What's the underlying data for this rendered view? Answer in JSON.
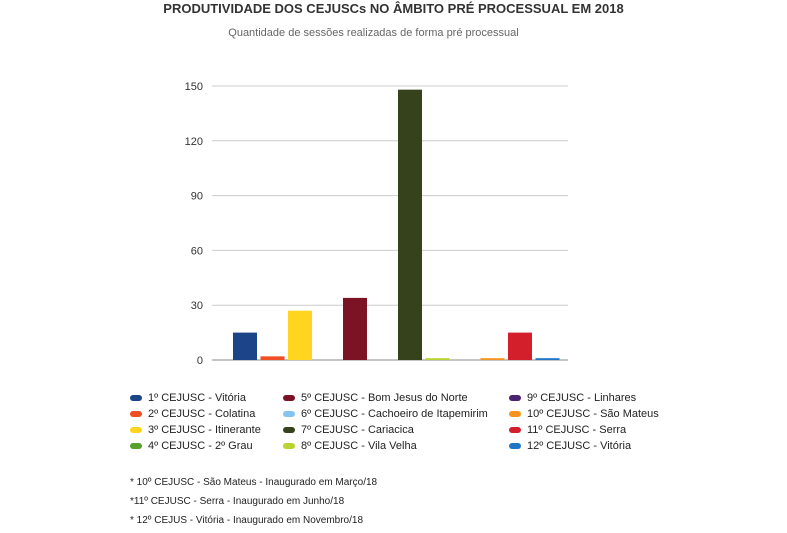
{
  "chart_data": {
    "type": "bar",
    "title": "PRODUTIVIDADE DOS CEJUSCs NO ÂMBITO PRÉ PROCESSUAL EM 2018",
    "subtitle": "Quantidade de sessões realizadas de forma pré processual",
    "xlabel": "",
    "ylabel": "",
    "ylim": [
      0,
      150
    ],
    "yticks": [
      "0",
      "30",
      "60",
      "90",
      "120",
      "150"
    ],
    "grid": true,
    "legend_position": "bottom",
    "series": [
      {
        "name": "1º CEJUSC - Vitória",
        "value": 15,
        "color": "#1c4587"
      },
      {
        "name": "2º CEJUSC - Colatina",
        "value": 2,
        "color": "#f04e23"
      },
      {
        "name": "3º CEJUSC - Itinerante",
        "value": 27,
        "color": "#ffd51f"
      },
      {
        "name": "4º CEJUSC - 2º Grau",
        "value": 0,
        "color": "#5aa02c"
      },
      {
        "name": "5º CEJUSC - Bom Jesus do Norte",
        "value": 34,
        "color": "#7b1324"
      },
      {
        "name": "6º CEJUSC - Cachoeiro de Itapemirim",
        "value": 0,
        "color": "#85c4f0"
      },
      {
        "name": "7º CEJUSC - Cariacica",
        "value": 148,
        "color": "#35421c"
      },
      {
        "name": "8º CEJUSC - Vila Velha",
        "value": 1,
        "color": "#b8d432"
      },
      {
        "name": "9º CEJUSC - Linhares",
        "value": 0,
        "color": "#4a2270"
      },
      {
        "name": "10º CEJUSC - São Mateus",
        "value": 1,
        "color": "#f7931e"
      },
      {
        "name": "11º CEJUSC - Serra",
        "value": 15,
        "color": "#d21f2b"
      },
      {
        "name": "12º CEJUSC - Vitória",
        "value": 1,
        "color": "#2176c7"
      }
    ]
  },
  "notes": [
    "* 10º CEJUSC - São Mateus - Inaugurado em Março/18",
    "*11º CEJUSC - Serra - Inaugurado em Junho/18",
    "* 12º CEJUS - Vitória - Inaugurado em Novembro/18"
  ]
}
